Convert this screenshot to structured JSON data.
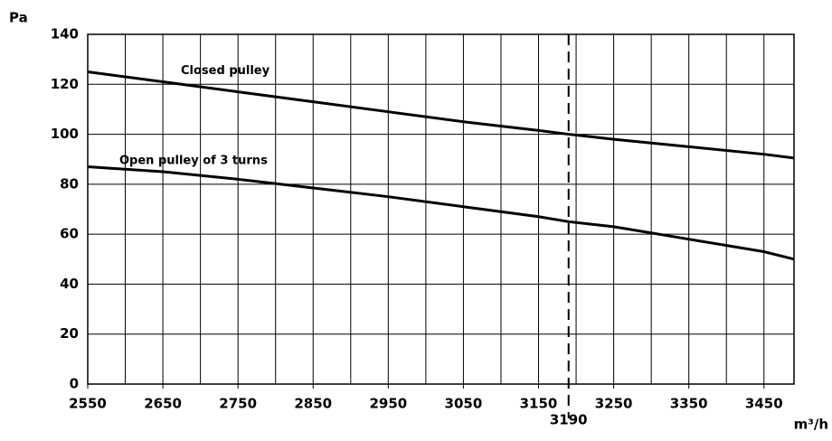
{
  "chart_data": {
    "type": "line",
    "y_axis_label": "Pa",
    "x_axis_label": "m³/h",
    "x": [
      2550,
      2650,
      2750,
      2850,
      2950,
      3050,
      3150,
      3190,
      3250,
      3350,
      3450,
      3490
    ],
    "series": [
      {
        "name": "Closed pulley",
        "color": "#000000",
        "values": [
          125,
          121,
          117,
          113,
          109,
          105,
          101.5,
          100,
          98,
          95,
          92,
          90.5
        ]
      },
      {
        "name": "Open pulley of 3 turns",
        "color": "#000000",
        "values": [
          87,
          85,
          82,
          78.5,
          75,
          71,
          67,
          65,
          63,
          58,
          53,
          50
        ]
      }
    ],
    "xlim": [
      2550,
      3490
    ],
    "xticks": [
      2550,
      2650,
      2750,
      2850,
      2950,
      3050,
      3150,
      3250,
      3350,
      3450
    ],
    "x_minor_ticks": [
      2600,
      2700,
      2800,
      2900,
      3000,
      3100,
      3200,
      3300,
      3400
    ],
    "ylim": [
      0,
      140
    ],
    "yticks": [
      0,
      20,
      40,
      60,
      80,
      100,
      120,
      140
    ],
    "grid": true,
    "marker_line": 3190
  }
}
